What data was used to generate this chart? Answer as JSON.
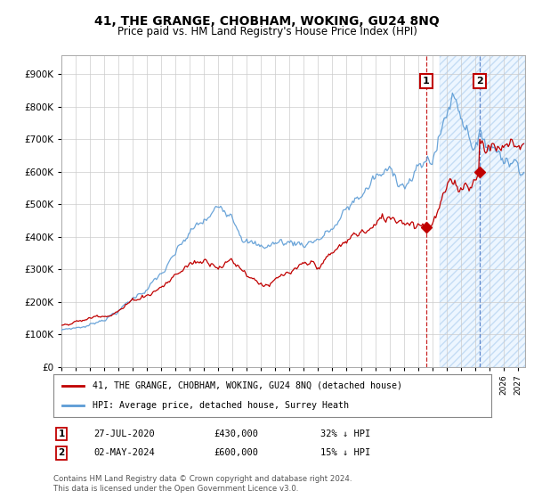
{
  "title": "41, THE GRANGE, CHOBHAM, WOKING, GU24 8NQ",
  "subtitle": "Price paid vs. HM Land Registry's House Price Index (HPI)",
  "title_fontsize": 10,
  "subtitle_fontsize": 8.5,
  "yticks": [
    0,
    100000,
    200000,
    300000,
    400000,
    500000,
    600000,
    700000,
    800000,
    900000
  ],
  "ylim": [
    0,
    960000
  ],
  "xlim_start": 1995.0,
  "xlim_end": 2027.5,
  "hpi_color": "#5b9bd5",
  "price_color": "#c00000",
  "sale1_date_label": "27-JUL-2020",
  "sale1_price": 430000,
  "sale1_price_label": "£430,000",
  "sale1_pct_label": "32% ↓ HPI",
  "sale1_year": 2020.58,
  "sale2_date_label": "02-MAY-2024",
  "sale2_price": 600000,
  "sale2_price_label": "£600,000",
  "sale2_pct_label": "15% ↓ HPI",
  "sale2_year": 2024.33,
  "legend_label1": "41, THE GRANGE, CHOBHAM, WOKING, GU24 8NQ (detached house)",
  "legend_label2": "HPI: Average price, detached house, Surrey Heath",
  "footnote": "Contains HM Land Registry data © Crown copyright and database right 2024.\nThis data is licensed under the Open Government Licence v3.0.",
  "hatched_region_start": 2021.5,
  "background_color": "#ffffff",
  "grid_color": "#cccccc"
}
